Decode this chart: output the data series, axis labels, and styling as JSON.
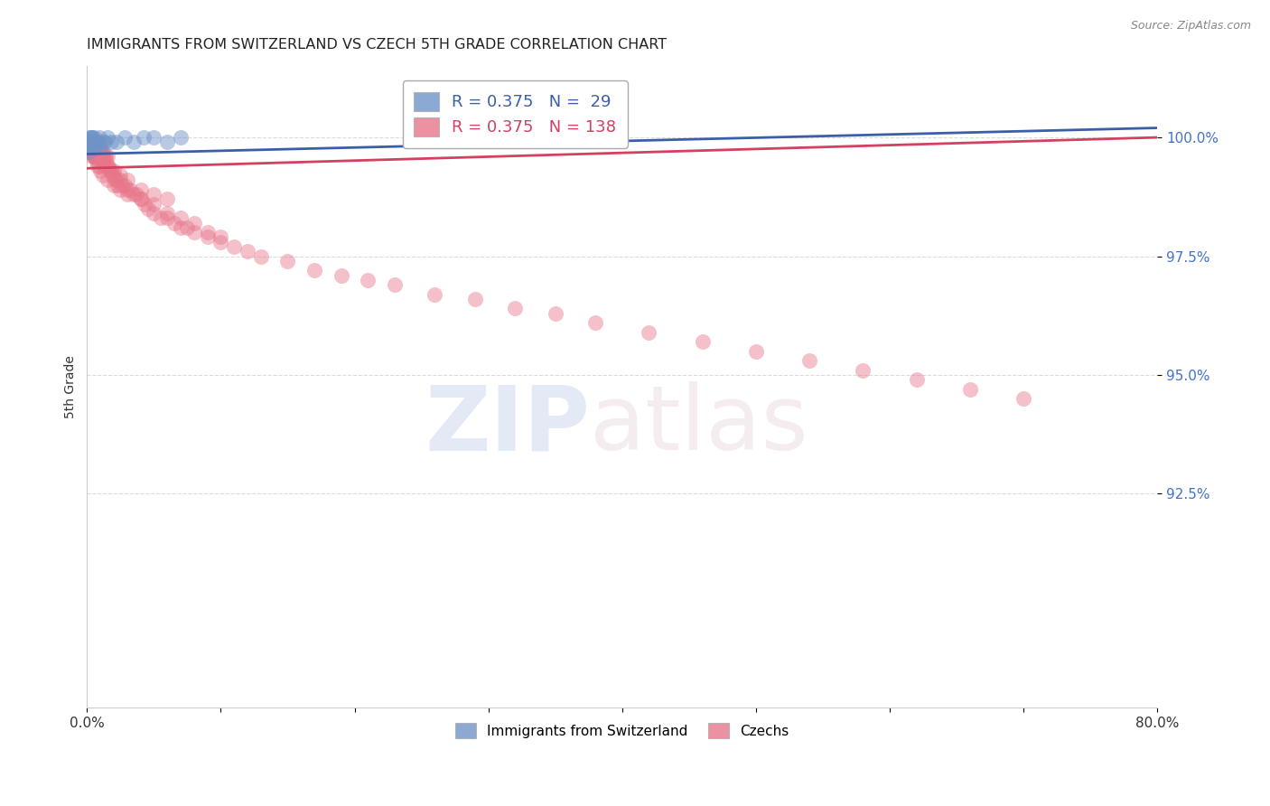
{
  "title": "IMMIGRANTS FROM SWITZERLAND VS CZECH 5TH GRADE CORRELATION CHART",
  "source": "Source: ZipAtlas.com",
  "ylabel": "5th Grade",
  "ytick_labels": [
    "100.0%",
    "97.5%",
    "95.0%",
    "92.5%"
  ],
  "ytick_values": [
    1.0,
    0.975,
    0.95,
    0.925
  ],
  "xlim": [
    0.0,
    0.8
  ],
  "ylim": [
    0.88,
    1.015
  ],
  "legend_blue_R": "0.375",
  "legend_blue_N": "29",
  "legend_pink_R": "0.375",
  "legend_pink_N": "138",
  "blue_color": "#7094c8",
  "pink_color": "#e8768a",
  "blue_line_color": "#3a5fa8",
  "pink_line_color": "#d44060",
  "background_color": "#ffffff",
  "grid_color": "#cccccc",
  "swiss_x": [
    0.001,
    0.002,
    0.002,
    0.002,
    0.003,
    0.003,
    0.003,
    0.003,
    0.004,
    0.004,
    0.004,
    0.005,
    0.005,
    0.006,
    0.007,
    0.008,
    0.009,
    0.01,
    0.012,
    0.013,
    0.015,
    0.018,
    0.022,
    0.028,
    0.035,
    0.042,
    0.05,
    0.06,
    0.07
  ],
  "swiss_y": [
    0.997,
    0.998,
    0.999,
    1.0,
    0.999,
    1.0,
    1.0,
    0.998,
    0.999,
    1.0,
    0.998,
    0.999,
    1.0,
    0.998,
    0.999,
    0.999,
    1.0,
    0.998,
    0.999,
    0.999,
    1.0,
    0.999,
    0.999,
    1.0,
    0.999,
    1.0,
    1.0,
    0.999,
    1.0
  ],
  "czech_x": [
    0.001,
    0.001,
    0.002,
    0.002,
    0.002,
    0.002,
    0.002,
    0.003,
    0.003,
    0.003,
    0.003,
    0.003,
    0.004,
    0.004,
    0.004,
    0.004,
    0.004,
    0.004,
    0.005,
    0.005,
    0.005,
    0.005,
    0.005,
    0.006,
    0.006,
    0.006,
    0.006,
    0.007,
    0.007,
    0.007,
    0.007,
    0.008,
    0.008,
    0.008,
    0.008,
    0.009,
    0.009,
    0.009,
    0.01,
    0.01,
    0.01,
    0.011,
    0.011,
    0.012,
    0.012,
    0.012,
    0.013,
    0.013,
    0.014,
    0.014,
    0.015,
    0.015,
    0.016,
    0.017,
    0.018,
    0.019,
    0.02,
    0.021,
    0.022,
    0.023,
    0.025,
    0.026,
    0.028,
    0.03,
    0.032,
    0.035,
    0.037,
    0.04,
    0.043,
    0.046,
    0.05,
    0.055,
    0.06,
    0.065,
    0.07,
    0.075,
    0.08,
    0.09,
    0.1,
    0.11,
    0.12,
    0.13,
    0.15,
    0.17,
    0.19,
    0.21,
    0.23,
    0.26,
    0.29,
    0.32,
    0.35,
    0.38,
    0.42,
    0.46,
    0.5,
    0.54,
    0.58,
    0.62,
    0.66,
    0.7,
    0.003,
    0.004,
    0.005,
    0.006,
    0.007,
    0.008,
    0.009,
    0.01,
    0.012,
    0.015,
    0.003,
    0.004,
    0.005,
    0.006,
    0.007,
    0.008,
    0.02,
    0.025,
    0.03,
    0.04,
    0.05,
    0.06,
    0.07,
    0.08,
    0.09,
    0.1,
    0.003,
    0.005,
    0.007,
    0.009,
    0.012,
    0.015,
    0.02,
    0.025,
    0.03,
    0.04,
    0.05,
    0.06
  ],
  "czech_y": [
    0.999,
    0.998,
    0.999,
    0.998,
    0.997,
    0.999,
    0.998,
    0.998,
    0.997,
    0.999,
    0.997,
    0.998,
    0.998,
    0.997,
    0.999,
    0.996,
    0.998,
    0.997,
    0.998,
    0.997,
    0.996,
    0.998,
    0.999,
    0.997,
    0.996,
    0.998,
    0.997,
    0.997,
    0.996,
    0.998,
    0.997,
    0.996,
    0.998,
    0.997,
    0.999,
    0.996,
    0.997,
    0.998,
    0.996,
    0.997,
    0.995,
    0.997,
    0.996,
    0.995,
    0.997,
    0.996,
    0.994,
    0.996,
    0.995,
    0.996,
    0.994,
    0.996,
    0.994,
    0.993,
    0.993,
    0.992,
    0.992,
    0.991,
    0.991,
    0.99,
    0.991,
    0.99,
    0.99,
    0.989,
    0.989,
    0.988,
    0.988,
    0.987,
    0.986,
    0.985,
    0.984,
    0.983,
    0.983,
    0.982,
    0.981,
    0.981,
    0.98,
    0.979,
    0.978,
    0.977,
    0.976,
    0.975,
    0.974,
    0.972,
    0.971,
    0.97,
    0.969,
    0.967,
    0.966,
    0.964,
    0.963,
    0.961,
    0.959,
    0.957,
    0.955,
    0.953,
    0.951,
    0.949,
    0.947,
    0.945,
    0.998,
    0.997,
    0.996,
    0.996,
    0.995,
    0.994,
    0.994,
    0.993,
    0.992,
    0.991,
    0.999,
    0.998,
    0.998,
    0.997,
    0.996,
    0.996,
    0.99,
    0.989,
    0.988,
    0.987,
    0.986,
    0.984,
    0.983,
    0.982,
    0.98,
    0.979,
    0.999,
    0.998,
    0.997,
    0.996,
    0.995,
    0.994,
    0.993,
    0.992,
    0.991,
    0.989,
    0.988,
    0.987
  ],
  "blue_trend_x": [
    0.0,
    0.8
  ],
  "blue_trend_y": [
    0.9965,
    1.003
  ],
  "pink_trend_x": [
    0.0,
    0.8
  ],
  "pink_trend_y": [
    0.9945,
    1.001
  ]
}
